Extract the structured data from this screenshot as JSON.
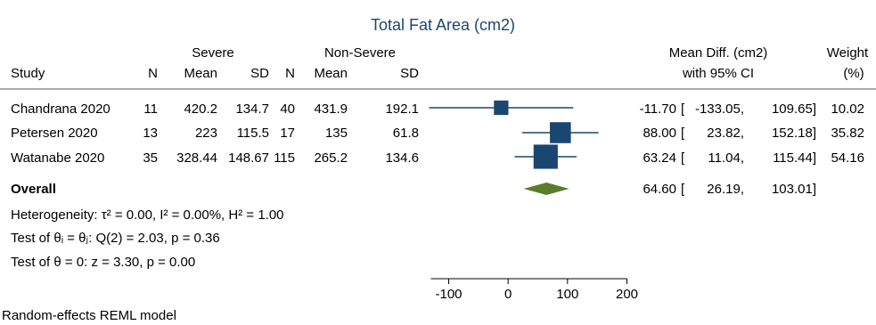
{
  "title": "Total Fat Area (cm2)",
  "group_headers": {
    "severe": "Severe",
    "non_severe": "Non-Severe"
  },
  "columns": {
    "study": "Study",
    "n1": "N",
    "mean1": "Mean",
    "sd1": "SD",
    "n2": "N",
    "mean2": "Mean",
    "sd2": "SD",
    "effect_line1": "Mean Diff. (cm2)",
    "effect_line2": "with 95% CI",
    "weight_line1": "Weight",
    "weight_line2": "(%)"
  },
  "rows": [
    {
      "study": "Chandrana 2020",
      "n1": "11",
      "mean1": "420.2",
      "sd1": "134.7",
      "n2": "40",
      "mean2": "431.9",
      "sd2": "192.1",
      "md": "-11.70",
      "lo": "-133.05,",
      "hi": "109.65]",
      "weight": "10.02"
    },
    {
      "study": "Petersen 2020",
      "n1": "13",
      "mean1": "223",
      "sd1": "115.5",
      "n2": "17",
      "mean2": "135",
      "sd2": "61.8",
      "md": "88.00",
      "lo": "23.82,",
      "hi": "152.18]",
      "weight": "35.82"
    },
    {
      "study": "Watanabe 2020",
      "n1": "35",
      "mean1": "328.44",
      "sd1": "148.67",
      "n2": "115",
      "mean2": "265.2",
      "sd2": "134.6",
      "md": "63.24",
      "lo": "11.04,",
      "hi": "115.44]",
      "weight": "54.16"
    }
  ],
  "overall": {
    "label": "Overall",
    "md": "64.60",
    "lo": "26.19,",
    "hi": "103.01]"
  },
  "ci_bracket": "[",
  "stats": {
    "heterogeneity": "Heterogeneity: τ² = 0.00, I² = 0.00%, H² = 1.00",
    "test_equal": "Test of θᵢ = θⱼ: Q(2) = 2.03, p = 0.36",
    "test_zero": "Test of θ = 0: z = 3.30, p = 0.00"
  },
  "footnote": "Random-effects REML model",
  "colors": {
    "series": "#1a476f",
    "overall": "#5a7d2a",
    "title": "#1a476f"
  },
  "chart_data": {
    "type": "forest",
    "title": "Total Fat Area (cm2)",
    "xlabel": "",
    "xlim": [
      -100,
      200
    ],
    "xticks": [
      -100,
      0,
      100,
      200
    ],
    "reference_line": null,
    "studies": [
      {
        "name": "Chandrana 2020",
        "estimate": -11.7,
        "ci_low": -133.05,
        "ci_high": 109.65,
        "weight": 10.02
      },
      {
        "name": "Petersen 2020",
        "estimate": 88.0,
        "ci_low": 23.82,
        "ci_high": 152.18,
        "weight": 35.82
      },
      {
        "name": "Watanabe 2020",
        "estimate": 63.24,
        "ci_low": 11.04,
        "ci_high": 115.44,
        "weight": 54.16
      }
    ],
    "overall": {
      "estimate": 64.6,
      "ci_low": 26.19,
      "ci_high": 103.01
    },
    "grid": false
  }
}
